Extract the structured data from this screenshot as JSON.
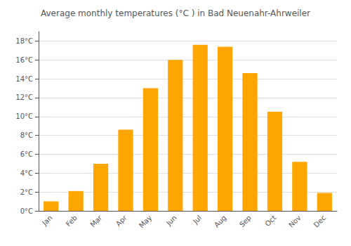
{
  "chart_data": {
    "type": "bar",
    "title": "Average monthly temperatures (°C ) in Bad Neuenahr-Ahrweiler",
    "categories": [
      "Jan",
      "Feb",
      "Mar",
      "Apr",
      "May",
      "Jun",
      "Jul",
      "Aug",
      "Sep",
      "Oct",
      "Nov",
      "Dec"
    ],
    "values": [
      1.0,
      2.1,
      5.0,
      8.6,
      13.0,
      16.0,
      17.6,
      17.4,
      14.6,
      10.5,
      5.2,
      1.9
    ],
    "color": "#FFA500",
    "ylim": [
      0,
      19
    ],
    "yticks": [
      {
        "value": 0,
        "label": "0°C"
      },
      {
        "value": 2,
        "label": "2°C"
      },
      {
        "value": 4,
        "label": "4°C"
      },
      {
        "value": 6,
        "label": "6°C"
      },
      {
        "value": 8,
        "label": "8°C"
      },
      {
        "value": 10,
        "label": "10°C"
      },
      {
        "value": 12,
        "label": "12°C"
      },
      {
        "value": 14,
        "label": "14°C"
      },
      {
        "value": 16,
        "label": "16°C"
      },
      {
        "value": 18,
        "label": "18°C"
      }
    ],
    "grid": true
  }
}
